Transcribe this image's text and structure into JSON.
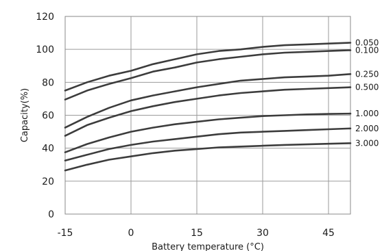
{
  "chart_data": {
    "type": "line",
    "xlabel": "Battery temperature (°C)",
    "ylabel": "Capacity(%)",
    "xlim": [
      -15,
      50
    ],
    "ylim": [
      0,
      120
    ],
    "x_ticks": [
      -15,
      0,
      15,
      30,
      45
    ],
    "x_tick_labels": [
      "-15",
      "0",
      "15",
      "30",
      "45"
    ],
    "y_ticks": [
      0,
      20,
      40,
      60,
      80,
      100,
      120
    ],
    "y_tick_labels": [
      "0",
      "20",
      "40",
      "60",
      "80",
      "100",
      "120"
    ],
    "grid": true,
    "line_color": "#3c3c3c",
    "x": [
      -15,
      -10,
      -5,
      0,
      5,
      10,
      15,
      20,
      25,
      30,
      35,
      40,
      45,
      50
    ],
    "series": [
      {
        "name": "0.050",
        "values": [
          75,
          80,
          84,
          87,
          91,
          94,
          97,
          99,
          100,
          101.5,
          102.5,
          103,
          103.5,
          104
        ]
      },
      {
        "name": "0.100",
        "values": [
          69.5,
          75,
          79,
          82.5,
          86.5,
          89,
          92,
          94,
          95.5,
          97,
          98,
          98.5,
          99,
          99.5
        ]
      },
      {
        "name": "0.250",
        "values": [
          52.5,
          59,
          64.5,
          69,
          72,
          74.5,
          77,
          79,
          81,
          82,
          83,
          83.5,
          84,
          85
        ]
      },
      {
        "name": "0.500",
        "values": [
          47.5,
          54,
          58.5,
          62.5,
          65.5,
          68,
          70,
          72,
          73.5,
          74.5,
          75.5,
          76,
          76.5,
          77
        ]
      },
      {
        "name": "1.000",
        "values": [
          37.5,
          42.5,
          46.5,
          50,
          52.5,
          54.5,
          56,
          57.5,
          58.5,
          59.5,
          60,
          60.5,
          60.8,
          61
        ]
      },
      {
        "name": "2.000",
        "values": [
          32.5,
          36,
          39.5,
          42,
          44,
          45.5,
          47,
          48.5,
          49.5,
          50,
          50.5,
          51,
          51.5,
          52
        ]
      },
      {
        "name": "3.000",
        "values": [
          26.5,
          30,
          33,
          35,
          37,
          38.5,
          39.5,
          40.5,
          41,
          41.5,
          42,
          42.3,
          42.7,
          43
        ]
      }
    ]
  }
}
